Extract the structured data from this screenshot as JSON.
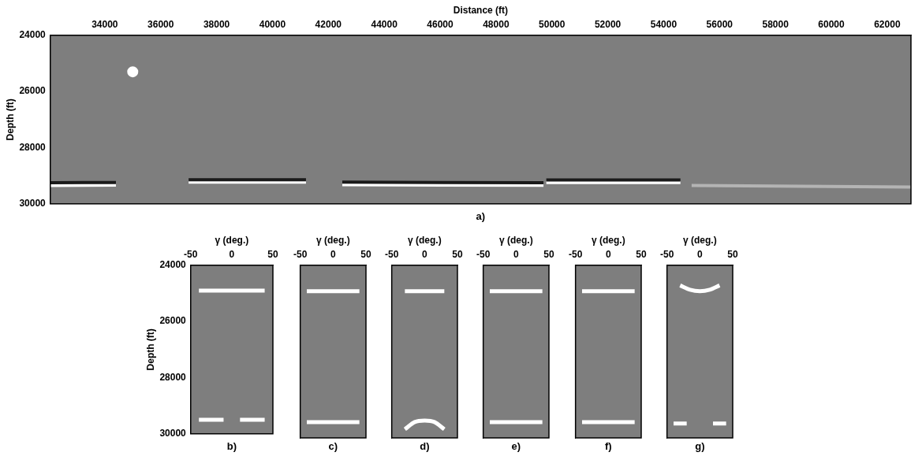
{
  "chart_data": [
    {
      "type": "line",
      "title": "a)",
      "x_label": "Distance (ft)",
      "y_label": "Depth (ft)",
      "xlim": [
        32050,
        62850
      ],
      "xticks": [
        34000,
        36000,
        38000,
        40000,
        42000,
        44000,
        46000,
        48000,
        50000,
        52000,
        54000,
        56000,
        58000,
        60000,
        62000
      ],
      "ylim": [
        24000,
        30000
      ],
      "yticks": [
        24000,
        26000,
        28000,
        30000
      ],
      "grid": false,
      "series": [
        {
          "color": "#1a1a1a",
          "x": [
            32050,
            34400,
            34500,
            37000,
            41200,
            41300,
            42500,
            49700,
            49750,
            49800,
            54600
          ],
          "values": [
            29250,
            29240,
            null,
            29140,
            29140,
            null,
            29230,
            29250,
            null,
            29150,
            29150
          ]
        },
        {
          "color": "#ffffff",
          "x": [
            32050,
            34400,
            34500,
            37000,
            41200,
            41300,
            42500,
            49700,
            49750,
            49800,
            54600
          ],
          "values": [
            29350,
            29330,
            null,
            29230,
            29230,
            null,
            29320,
            29340,
            null,
            29240,
            29240
          ]
        },
        {
          "color": "#b4b4b4",
          "x": [
            55000,
            62850
          ],
          "values": [
            29350,
            29400
          ]
        },
        {
          "color": "#ffffff",
          "marker": "circle",
          "x": [
            35000
          ],
          "values": [
            25300
          ]
        }
      ]
    },
    {
      "type": "line",
      "title": "b)",
      "x_label": "γ (deg.)",
      "y_label": "Depth (ft)",
      "xlim": [
        -50,
        50
      ],
      "xticks": [
        -50,
        0,
        50
      ],
      "ylim": [
        24000,
        30000
      ],
      "yticks": [
        24000,
        26000,
        28000,
        30000
      ],
      "grid": false,
      "series": [
        {
          "color": "#ffffff",
          "x": [
            -40,
            40
          ],
          "values": [
            24900,
            24900
          ]
        },
        {
          "color": "#ffffff",
          "x": [
            -40,
            -10,
            0,
            10,
            40
          ],
          "values": [
            29500,
            29500,
            null,
            29500,
            29500
          ]
        }
      ]
    },
    {
      "type": "line",
      "title": "c)",
      "x_label": "γ (deg.)",
      "tick_labels": "x",
      "xlim": [
        -50,
        50
      ],
      "xticks": [
        -50,
        0,
        50
      ],
      "ylim": [
        24000,
        30000
      ],
      "yticks": [
        24000,
        26000,
        28000,
        30000
      ],
      "grid": false,
      "series": [
        {
          "color": "#ffffff",
          "x": [
            -40,
            40
          ],
          "values": [
            24900,
            24900
          ]
        },
        {
          "color": "#ffffff",
          "x": [
            -40,
            40
          ],
          "values": [
            29450,
            29450
          ]
        }
      ]
    },
    {
      "type": "line",
      "title": "d)",
      "x_label": "γ (deg.)",
      "tick_labels": "x",
      "xlim": [
        -50,
        50
      ],
      "xticks": [
        -50,
        0,
        50
      ],
      "ylim": [
        24000,
        30000
      ],
      "yticks": [
        24000,
        26000,
        28000,
        30000
      ],
      "grid": false,
      "series": [
        {
          "color": "#ffffff",
          "x": [
            -30,
            30
          ],
          "values": [
            24900,
            24900
          ]
        },
        {
          "color": "#ffffff",
          "x": [
            -30,
            -15,
            0,
            15,
            30
          ],
          "values": [
            29700,
            29450,
            29400,
            29450,
            29700
          ]
        }
      ]
    },
    {
      "type": "line",
      "title": "e)",
      "x_label": "γ (deg.)",
      "tick_labels": "x",
      "xlim": [
        -50,
        50
      ],
      "xticks": [
        -50,
        0,
        50
      ],
      "ylim": [
        24000,
        30000
      ],
      "yticks": [
        24000,
        26000,
        28000,
        30000
      ],
      "grid": false,
      "series": [
        {
          "color": "#ffffff",
          "x": [
            -40,
            40
          ],
          "values": [
            24900,
            24900
          ]
        },
        {
          "color": "#ffffff",
          "x": [
            -40,
            40
          ],
          "values": [
            29450,
            29450
          ]
        }
      ]
    },
    {
      "type": "line",
      "title": "f)",
      "x_label": "γ (deg.)",
      "tick_labels": "x",
      "xlim": [
        -50,
        50
      ],
      "xticks": [
        -50,
        0,
        50
      ],
      "ylim": [
        24000,
        30000
      ],
      "yticks": [
        24000,
        26000,
        28000,
        30000
      ],
      "grid": false,
      "series": [
        {
          "color": "#ffffff",
          "x": [
            -40,
            40
          ],
          "values": [
            24900,
            24900
          ]
        },
        {
          "color": "#ffffff",
          "x": [
            -40,
            40
          ],
          "values": [
            29450,
            29450
          ]
        }
      ]
    },
    {
      "type": "line",
      "title": "g)",
      "x_label": "γ (deg.)",
      "tick_labels": "x",
      "xlim": [
        -50,
        50
      ],
      "xticks": [
        -50,
        0,
        50
      ],
      "ylim": [
        24000,
        30000
      ],
      "yticks": [
        24000,
        26000,
        28000,
        30000
      ],
      "grid": false,
      "series": [
        {
          "color": "#ffffff",
          "x": [
            -30,
            -15,
            0,
            15,
            30
          ],
          "values": [
            24700,
            24850,
            24900,
            24850,
            24700
          ]
        },
        {
          "color": "#ffffff",
          "x": [
            -40,
            -20,
            0,
            20,
            40
          ],
          "values": [
            29500,
            29500,
            null,
            29500,
            29500
          ]
        }
      ]
    }
  ]
}
